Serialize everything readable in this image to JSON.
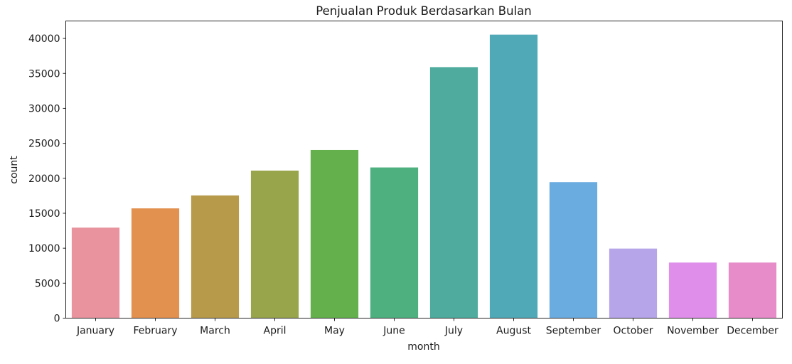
{
  "chart_data": {
    "type": "bar",
    "title": "Penjualan Produk Berdasarkan Bulan",
    "xlabel": "month",
    "ylabel": "count",
    "categories": [
      "January",
      "February",
      "March",
      "April",
      "May",
      "June",
      "July",
      "August",
      "September",
      "October",
      "November",
      "December"
    ],
    "values": [
      12950,
      15700,
      17550,
      21100,
      24050,
      21550,
      35900,
      40550,
      19450,
      9950,
      7950,
      7950
    ],
    "colors": [
      "#e8939e",
      "#e3914f",
      "#b89a4b",
      "#98a54b",
      "#63b04c",
      "#4db07e",
      "#4eab9e",
      "#50a9b6",
      "#6aabe0",
      "#b7a5ea",
      "#df8fe9",
      "#e88cc9"
    ],
    "ylim": [
      0,
      42500
    ],
    "yticks": [
      0,
      5000,
      10000,
      15000,
      20000,
      25000,
      30000,
      35000,
      40000
    ],
    "grid": false,
    "legend": "none"
  }
}
